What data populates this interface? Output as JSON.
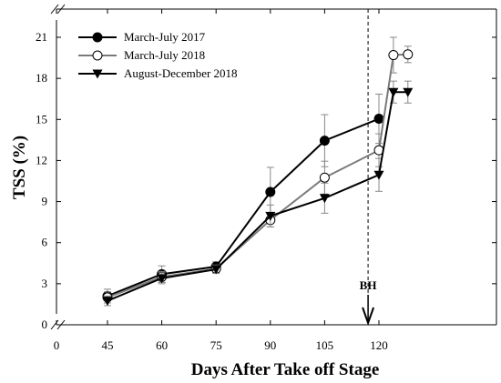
{
  "chart_data": {
    "type": "line",
    "title": "",
    "xlabel": "Days After Take off Stage",
    "ylabel": "TSS (%)",
    "xlim": [
      0,
      128
    ],
    "ylim": [
      0,
      22.5
    ],
    "xticks": [
      0,
      45,
      60,
      75,
      90,
      105,
      120
    ],
    "yticks": [
      0,
      3,
      6,
      9,
      12,
      15,
      18,
      21
    ],
    "axis_breaks": "x axis broken between 0 and 45",
    "grid": false,
    "legend_position": "top-left",
    "series": [
      {
        "name": "March-July 2017",
        "marker": "filled-circle",
        "color": "#000000",
        "x": [
          45,
          60,
          75,
          90,
          105,
          120,
          124,
          128
        ],
        "y": [
          2.1,
          3.7,
          4.25,
          9.7,
          13.45,
          15.05,
          null,
          null
        ],
        "error": [
          0.5,
          0.6,
          0.35,
          1.8,
          1.9,
          1.8,
          null,
          null
        ]
      },
      {
        "name": "March-July 2018",
        "marker": "open-circle",
        "color": "#7a7a7a",
        "x": [
          45,
          60,
          75,
          90,
          105,
          120,
          124,
          128
        ],
        "y": [
          2.0,
          3.5,
          4.1,
          7.65,
          10.75,
          12.75,
          19.7,
          19.75
        ],
        "error": [
          0.4,
          0.4,
          0.3,
          0.5,
          1.2,
          1.2,
          1.3,
          0.6
        ]
      },
      {
        "name": "August-December 2018",
        "marker": "filled-triangle-down",
        "color": "#000000",
        "x": [
          45,
          60,
          75,
          90,
          105,
          120,
          124,
          128
        ],
        "y": [
          1.75,
          3.4,
          4.05,
          7.95,
          9.25,
          10.95,
          17.0,
          17.0
        ],
        "error": [
          0.35,
          0.4,
          0.3,
          0.8,
          1.1,
          1.2,
          0.8,
          0.8
        ]
      }
    ],
    "annotation": {
      "label": "BH",
      "x": 117,
      "style": "dashed vertical line with downward arrow"
    }
  }
}
